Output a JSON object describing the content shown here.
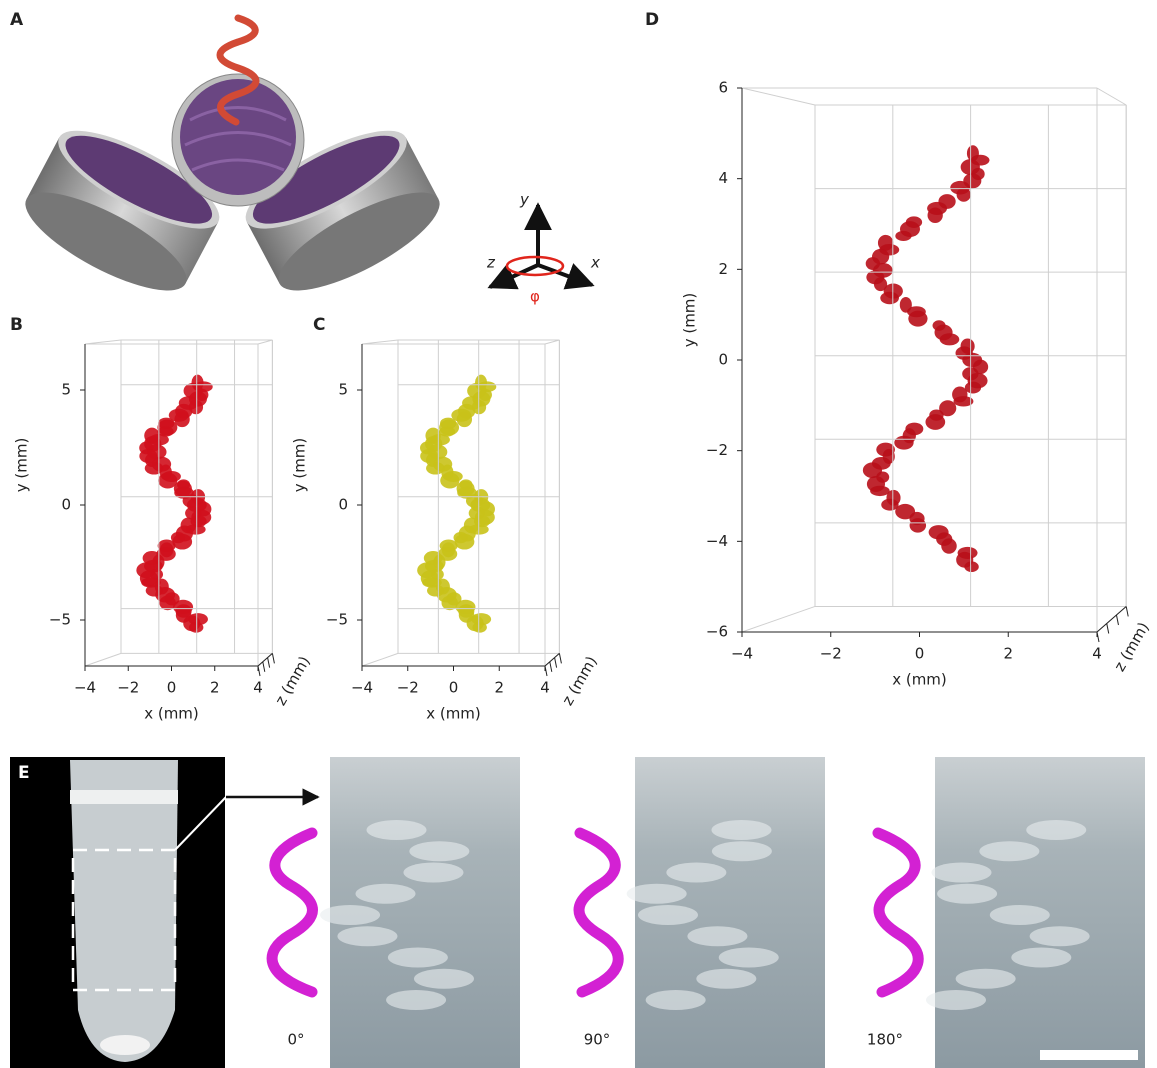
{
  "panel_a": {
    "label": "A",
    "axes": {
      "y": "y",
      "x": "x",
      "z": "z",
      "rotation": "φ"
    }
  },
  "chart_data": [
    {
      "type": "volume",
      "label": "B",
      "color": "#d0101c",
      "xlabel": "x (mm)",
      "ylabel": "y (mm)",
      "zlabel": "z (mm)",
      "xlim": [
        -4,
        4
      ],
      "ylim": [
        -7,
        7
      ],
      "xticks": [
        {
          "value": -4,
          "label": "−4"
        },
        {
          "value": -2,
          "label": "−2"
        },
        0,
        2,
        4
      ],
      "yticks": [
        {
          "value": -5,
          "label": "−5"
        },
        0,
        5
      ],
      "grid": true
    },
    {
      "type": "volume",
      "label": "C",
      "color": "#c9c21a",
      "xlabel": "x (mm)",
      "ylabel": "y (mm)",
      "zlabel": "z (mm)",
      "xlim": [
        -4,
        4
      ],
      "ylim": [
        -7,
        7
      ],
      "xticks": [
        {
          "value": -4,
          "label": "−4"
        },
        {
          "value": -2,
          "label": "−2"
        },
        0,
        2,
        4
      ],
      "yticks": [
        {
          "value": -5,
          "label": "−5"
        },
        0,
        5
      ],
      "grid": true
    },
    {
      "type": "volume",
      "label": "D",
      "color": "#b8101a",
      "xlabel": "x (mm)",
      "ylabel": "y (mm)",
      "zlabel": "z (mm)",
      "xlim": [
        -4,
        4
      ],
      "ylim": [
        -6,
        6
      ],
      "xticks": [
        {
          "value": -4,
          "label": "−4"
        },
        {
          "value": -2,
          "label": "−2"
        },
        0,
        2,
        4
      ],
      "yticks": [
        {
          "value": -6,
          "label": "−6"
        },
        {
          "value": -4,
          "label": "−4"
        },
        {
          "value": -2,
          "label": "−2"
        },
        0,
        2,
        4,
        6
      ],
      "grid": true
    }
  ],
  "panel_e": {
    "label": "E",
    "angles": [
      "0°",
      "90°",
      "180°"
    ]
  }
}
